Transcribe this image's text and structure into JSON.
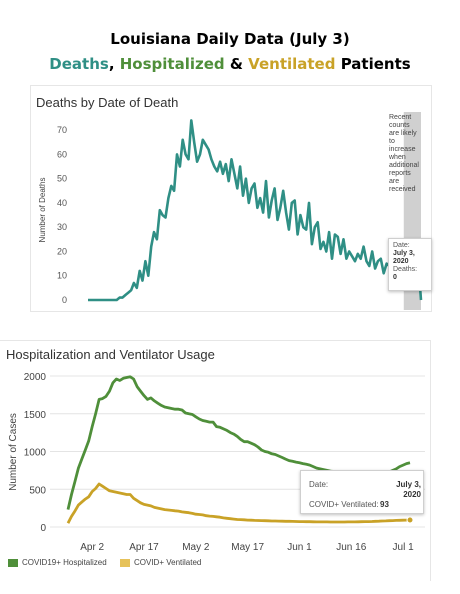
{
  "header": {
    "title_line1": "Louisiana Daily Data (July 3)",
    "title_deaths": "Deaths",
    "title_comma": ", ",
    "title_hosp": "Hospitalized",
    "title_amp": " & ",
    "title_vent": "Ventilated",
    "title_tail": " Patients"
  },
  "colors": {
    "deaths": "#2f8f85",
    "hospitalized": "#4f8f3a",
    "ventilated": "#c9a227",
    "shade": "#c8c8c8"
  },
  "deaths_chart": {
    "note_lines": [
      "Recent",
      "counts",
      "are likely",
      "to",
      "increase",
      "when",
      "additional",
      "reports",
      "are",
      "received"
    ],
    "tooltip": {
      "date_label": "Date:",
      "date_value_1": "July 3,",
      "date_value_2": "2020",
      "deaths_label": "Deaths:",
      "deaths_value": "0"
    }
  },
  "hosp_chart": {
    "tooltip": {
      "date_label": "Date:",
      "date_value_1": "July 3,",
      "date_value_2": "2020",
      "vent_label": "COVID+ Ventilated:",
      "vent_value": "93"
    },
    "legend": [
      "COVID19+ Hospitalized",
      "COVID+ Ventilated"
    ]
  },
  "chart_data": [
    {
      "type": "line",
      "title": "Deaths by Date of Death",
      "ylabel": "Number of Deaths",
      "xlabel": "",
      "ylim": [
        0,
        75
      ],
      "yticks": [
        0,
        10,
        20,
        30,
        40,
        50,
        60,
        70
      ],
      "x": [
        "2020-03-09",
        "2020-03-10",
        "2020-03-11",
        "2020-03-12",
        "2020-03-13",
        "2020-03-14",
        "2020-03-15",
        "2020-03-16",
        "2020-03-17",
        "2020-03-18",
        "2020-03-19",
        "2020-03-20",
        "2020-03-21",
        "2020-03-22",
        "2020-03-23",
        "2020-03-24",
        "2020-03-25",
        "2020-03-26",
        "2020-03-27",
        "2020-03-28",
        "2020-03-29",
        "2020-03-30",
        "2020-03-31",
        "2020-04-01",
        "2020-04-02",
        "2020-04-03",
        "2020-04-04",
        "2020-04-05",
        "2020-04-06",
        "2020-04-07",
        "2020-04-08",
        "2020-04-09",
        "2020-04-10",
        "2020-04-11",
        "2020-04-12",
        "2020-04-13",
        "2020-04-14",
        "2020-04-15",
        "2020-04-16",
        "2020-04-17",
        "2020-04-18",
        "2020-04-19",
        "2020-04-20",
        "2020-04-21",
        "2020-04-22",
        "2020-04-23",
        "2020-04-24",
        "2020-04-25",
        "2020-04-26",
        "2020-04-27",
        "2020-04-28",
        "2020-04-29",
        "2020-04-30",
        "2020-05-01",
        "2020-05-02",
        "2020-05-03",
        "2020-05-04",
        "2020-05-05",
        "2020-05-06",
        "2020-05-07",
        "2020-05-08",
        "2020-05-09",
        "2020-05-10",
        "2020-05-11",
        "2020-05-12",
        "2020-05-13",
        "2020-05-14",
        "2020-05-15",
        "2020-05-16",
        "2020-05-17",
        "2020-05-18",
        "2020-05-19",
        "2020-05-20",
        "2020-05-21",
        "2020-05-22",
        "2020-05-23",
        "2020-05-24",
        "2020-05-25",
        "2020-05-26",
        "2020-05-27",
        "2020-05-28",
        "2020-05-29",
        "2020-05-30",
        "2020-05-31",
        "2020-06-01",
        "2020-06-02",
        "2020-06-03",
        "2020-06-04",
        "2020-06-05",
        "2020-06-06",
        "2020-06-07",
        "2020-06-08",
        "2020-06-09",
        "2020-06-10",
        "2020-06-11",
        "2020-06-12",
        "2020-06-13",
        "2020-06-14",
        "2020-06-15",
        "2020-06-16",
        "2020-06-17",
        "2020-06-18",
        "2020-06-19",
        "2020-06-20",
        "2020-06-21",
        "2020-06-22",
        "2020-06-23",
        "2020-06-24",
        "2020-06-25",
        "2020-06-26",
        "2020-06-27",
        "2020-06-28",
        "2020-06-29",
        "2020-06-30",
        "2020-07-01",
        "2020-07-02",
        "2020-07-03"
      ],
      "series": [
        {
          "values": [
            0,
            0,
            0,
            0,
            0,
            0,
            0,
            0,
            0,
            0,
            0,
            1,
            1,
            2,
            3,
            4,
            7,
            5,
            12,
            8,
            16,
            10,
            22,
            28,
            25,
            37,
            35,
            34,
            42,
            47,
            45,
            60,
            55,
            66,
            60,
            58,
            74,
            65,
            57,
            60,
            66,
            64,
            62,
            58,
            55,
            53,
            57,
            52,
            56,
            49,
            58,
            52,
            46,
            55,
            43,
            50,
            40,
            46,
            48,
            38,
            42,
            36,
            49,
            34,
            41,
            46,
            33,
            38,
            45,
            36,
            29,
            40,
            41,
            27,
            35,
            30,
            29,
            40,
            23,
            30,
            32,
            21,
            24,
            20,
            28,
            17,
            27,
            26,
            19,
            25,
            17,
            20,
            18,
            16,
            19,
            17,
            22,
            16,
            14,
            20,
            13,
            16,
            17,
            11,
            15,
            14,
            13,
            17,
            15,
            10,
            13,
            18,
            9,
            14,
            11,
            16,
            0
          ]
        }
      ],
      "shaded_region": [
        "2020-06-27",
        "2020-07-03"
      ]
    },
    {
      "type": "line",
      "title": "Hospitalization and Ventilator Usage",
      "ylabel": "Number of Cases",
      "xlabel": "",
      "ylim": [
        0,
        2000
      ],
      "yticks": [
        0,
        500,
        1000,
        1500,
        2000
      ],
      "xticks": [
        "Apr 2",
        "Apr 17",
        "May 2",
        "May 17",
        "Jun 1",
        "Jun 16",
        "Jul 1"
      ],
      "x": [
        "2020-03-26",
        "2020-03-27",
        "2020-03-28",
        "2020-03-29",
        "2020-03-30",
        "2020-03-31",
        "2020-04-01",
        "2020-04-02",
        "2020-04-03",
        "2020-04-04",
        "2020-04-05",
        "2020-04-06",
        "2020-04-07",
        "2020-04-08",
        "2020-04-09",
        "2020-04-10",
        "2020-04-11",
        "2020-04-12",
        "2020-04-13",
        "2020-04-14",
        "2020-04-15",
        "2020-04-16",
        "2020-04-17",
        "2020-04-18",
        "2020-04-19",
        "2020-04-20",
        "2020-04-21",
        "2020-04-22",
        "2020-04-23",
        "2020-04-24",
        "2020-04-25",
        "2020-04-26",
        "2020-04-27",
        "2020-04-28",
        "2020-04-29",
        "2020-04-30",
        "2020-05-01",
        "2020-05-02",
        "2020-05-03",
        "2020-05-04",
        "2020-05-05",
        "2020-05-06",
        "2020-05-07",
        "2020-05-08",
        "2020-05-09",
        "2020-05-10",
        "2020-05-11",
        "2020-05-12",
        "2020-05-13",
        "2020-05-14",
        "2020-05-15",
        "2020-05-16",
        "2020-05-17",
        "2020-05-18",
        "2020-05-19",
        "2020-05-20",
        "2020-05-21",
        "2020-05-22",
        "2020-05-23",
        "2020-05-24",
        "2020-05-25",
        "2020-05-26",
        "2020-05-27",
        "2020-05-28",
        "2020-05-29",
        "2020-05-30",
        "2020-05-31",
        "2020-06-01",
        "2020-06-02",
        "2020-06-03",
        "2020-06-04",
        "2020-06-05",
        "2020-06-06",
        "2020-06-07",
        "2020-06-08",
        "2020-06-09",
        "2020-06-10",
        "2020-06-11",
        "2020-06-12",
        "2020-06-13",
        "2020-06-14",
        "2020-06-15",
        "2020-06-16",
        "2020-06-17",
        "2020-06-18",
        "2020-06-19",
        "2020-06-20",
        "2020-06-21",
        "2020-06-22",
        "2020-06-23",
        "2020-06-24",
        "2020-06-25",
        "2020-06-26",
        "2020-06-27",
        "2020-06-28",
        "2020-06-29",
        "2020-06-30",
        "2020-07-01",
        "2020-07-02",
        "2020-07-03"
      ],
      "series": [
        {
          "name": "COVID19+ Hospitalized",
          "values": [
            230,
            430,
            600,
            780,
            900,
            1020,
            1140,
            1330,
            1500,
            1690,
            1700,
            1730,
            1800,
            1910,
            1960,
            1940,
            1970,
            1980,
            1990,
            1960,
            1860,
            1800,
            1740,
            1690,
            1710,
            1670,
            1640,
            1610,
            1590,
            1580,
            1570,
            1560,
            1560,
            1550,
            1510,
            1500,
            1490,
            1460,
            1430,
            1410,
            1400,
            1390,
            1390,
            1330,
            1320,
            1300,
            1280,
            1250,
            1230,
            1200,
            1160,
            1130,
            1130,
            1110,
            1090,
            1060,
            1020,
            1000,
            990,
            970,
            960,
            940,
            920,
            900,
            880,
            870,
            860,
            850,
            840,
            830,
            820,
            800,
            780,
            770,
            760,
            750,
            740,
            735,
            730,
            725,
            720,
            715,
            710,
            710,
            705,
            700,
            700,
            700,
            700,
            700,
            700,
            705,
            710,
            730,
            750,
            770,
            800,
            820,
            840,
            850
          ]
        },
        {
          "name": "COVID+ Ventilated",
          "values": [
            50,
            140,
            210,
            290,
            330,
            370,
            400,
            470,
            510,
            570,
            540,
            510,
            480,
            470,
            460,
            450,
            440,
            430,
            430,
            380,
            350,
            320,
            300,
            290,
            280,
            260,
            250,
            240,
            230,
            225,
            220,
            215,
            210,
            200,
            195,
            190,
            180,
            170,
            165,
            160,
            150,
            145,
            140,
            135,
            130,
            120,
            115,
            110,
            105,
            100,
            98,
            95,
            92,
            90,
            88,
            86,
            85,
            84,
            82,
            80,
            79,
            78,
            77,
            76,
            75,
            74,
            73,
            72,
            71,
            70,
            70,
            69,
            68,
            68,
            67,
            67,
            66,
            66,
            66,
            66,
            66,
            67,
            67,
            68,
            69,
            70,
            71,
            72,
            73,
            75,
            77,
            79,
            81,
            83,
            85,
            87,
            89,
            90,
            92,
            93
          ]
        }
      ]
    }
  ]
}
